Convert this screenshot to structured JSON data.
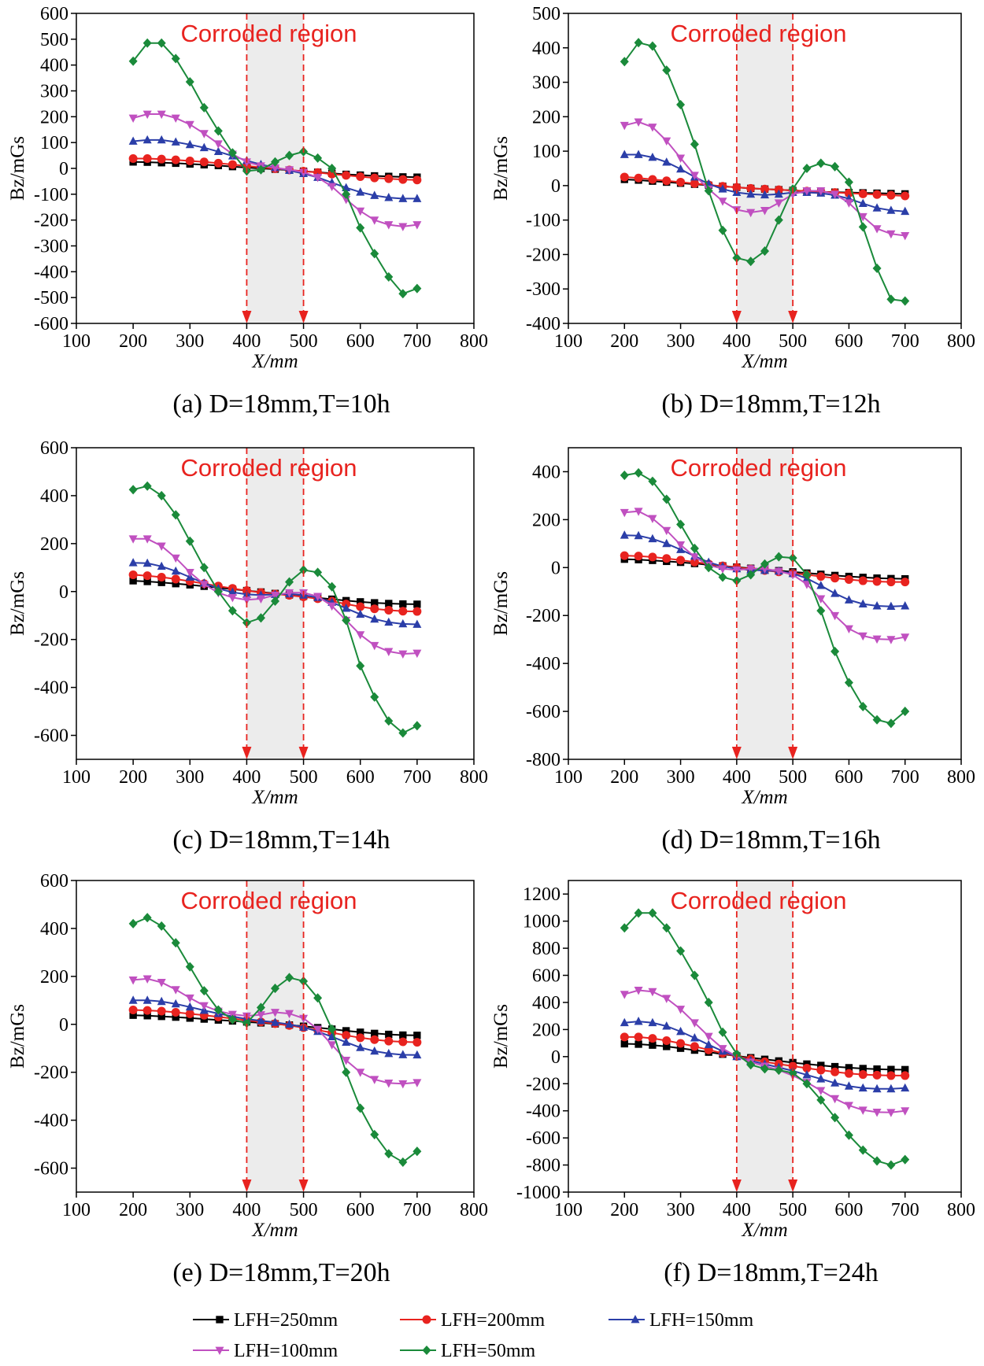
{
  "legend": [
    {
      "name": "LFH=250mm",
      "color": "#000000",
      "marker": "square"
    },
    {
      "name": "LFH=200mm",
      "color": "#e8231f",
      "marker": "circle"
    },
    {
      "name": "LFH=150mm",
      "color": "#2b3ea8",
      "marker": "triangle-up"
    },
    {
      "name": "LFH=100mm",
      "color": "#c050c0",
      "marker": "triangle-down"
    },
    {
      "name": "LFH=50mm",
      "color": "#1a8a3a",
      "marker": "diamond"
    }
  ],
  "chart_data": [
    {
      "type": "line",
      "title": "(a) D=18mm,T=10h",
      "xlabel": "X/mm",
      "ylabel": "Bz/mGs",
      "annotation": "Corroded region",
      "highlight_x": [
        400,
        500
      ],
      "xlim": [
        100,
        800
      ],
      "xticks": [
        100,
        200,
        300,
        400,
        500,
        600,
        700,
        800
      ],
      "ylim": [
        -600,
        600
      ],
      "yticks": [
        -600,
        -500,
        -400,
        -300,
        -200,
        -100,
        0,
        100,
        200,
        300,
        400,
        500,
        600
      ],
      "x": [
        200,
        225,
        250,
        275,
        300,
        325,
        350,
        375,
        400,
        425,
        450,
        475,
        500,
        525,
        550,
        575,
        600,
        625,
        650,
        675,
        700
      ],
      "series": [
        {
          "values": [
            25,
            24,
            22,
            20,
            17,
            14,
            11,
            7,
            3,
            0,
            -3,
            -7,
            -11,
            -15,
            -19,
            -23,
            -26,
            -29,
            -31,
            -33,
            -34
          ]
        },
        {
          "values": [
            38,
            38,
            36,
            33,
            29,
            25,
            20,
            15,
            9,
            4,
            -1,
            -6,
            -11,
            -16,
            -22,
            -27,
            -32,
            -37,
            -40,
            -43,
            -45
          ]
        },
        {
          "values": [
            105,
            110,
            110,
            102,
            92,
            80,
            65,
            48,
            30,
            15,
            3,
            -8,
            -20,
            -35,
            -55,
            -75,
            -92,
            -105,
            -113,
            -117,
            -117
          ]
        },
        {
          "values": [
            195,
            210,
            210,
            195,
            170,
            135,
            95,
            55,
            25,
            10,
            2,
            -5,
            -15,
            -35,
            -70,
            -120,
            -165,
            -200,
            -218,
            -225,
            -218
          ]
        },
        {
          "values": [
            415,
            485,
            485,
            425,
            335,
            235,
            145,
            60,
            -10,
            -5,
            25,
            50,
            65,
            40,
            0,
            -100,
            -230,
            -330,
            -420,
            -485,
            -465
          ]
        }
      ]
    },
    {
      "type": "line",
      "title": "(b) D=18mm,T=12h",
      "xlabel": "X/mm",
      "ylabel": "Bz/mGs",
      "annotation": "Corroded region",
      "highlight_x": [
        400,
        500
      ],
      "xlim": [
        100,
        800
      ],
      "xticks": [
        100,
        200,
        300,
        400,
        500,
        600,
        700,
        800
      ],
      "ylim": [
        -400,
        500
      ],
      "yticks": [
        -400,
        -300,
        -200,
        -100,
        0,
        100,
        200,
        300,
        400,
        500
      ],
      "x": [
        200,
        225,
        250,
        275,
        300,
        325,
        350,
        375,
        400,
        425,
        450,
        475,
        500,
        525,
        550,
        575,
        600,
        625,
        650,
        675,
        700
      ],
      "series": [
        {
          "values": [
            18,
            16,
            13,
            10,
            7,
            4,
            1,
            -2,
            -5,
            -8,
            -10,
            -12,
            -14,
            -16,
            -18,
            -19,
            -20,
            -21,
            -22,
            -23,
            -24
          ]
        },
        {
          "values": [
            25,
            22,
            18,
            14,
            10,
            6,
            2,
            -2,
            -5,
            -8,
            -10,
            -12,
            -14,
            -16,
            -18,
            -20,
            -22,
            -24,
            -26,
            -28,
            -30
          ]
        },
        {
          "values": [
            90,
            90,
            82,
            68,
            48,
            25,
            5,
            -10,
            -20,
            -25,
            -27,
            -25,
            -20,
            -20,
            -22,
            -28,
            -38,
            -52,
            -65,
            -72,
            -75
          ]
        },
        {
          "values": [
            175,
            185,
            170,
            130,
            80,
            30,
            -10,
            -45,
            -70,
            -78,
            -72,
            -50,
            -25,
            -15,
            -15,
            -25,
            -50,
            -90,
            -125,
            -140,
            -145
          ]
        },
        {
          "values": [
            360,
            415,
            405,
            335,
            235,
            120,
            -15,
            -130,
            -210,
            -220,
            -190,
            -100,
            -10,
            50,
            65,
            55,
            10,
            -120,
            -240,
            -330,
            -335
          ]
        }
      ]
    },
    {
      "type": "line",
      "title": "(c) D=18mm,T=14h",
      "xlabel": "X/mm",
      "ylabel": "Bz/mGs",
      "annotation": "Corroded region",
      "highlight_x": [
        400,
        500
      ],
      "xlim": [
        100,
        800
      ],
      "xticks": [
        100,
        200,
        300,
        400,
        500,
        600,
        700,
        800
      ],
      "ylim": [
        -700,
        600
      ],
      "yticks": [
        -600,
        -400,
        -200,
        0,
        200,
        400,
        600
      ],
      "x": [
        200,
        225,
        250,
        275,
        300,
        325,
        350,
        375,
        400,
        425,
        450,
        475,
        500,
        525,
        550,
        575,
        600,
        625,
        650,
        675,
        700
      ],
      "series": [
        {
          "values": [
            45,
            42,
            38,
            33,
            28,
            22,
            16,
            10,
            4,
            -2,
            -8,
            -14,
            -20,
            -26,
            -32,
            -38,
            -43,
            -47,
            -50,
            -52,
            -53
          ]
        },
        {
          "values": [
            70,
            66,
            60,
            52,
            43,
            33,
            23,
            13,
            4,
            -4,
            -10,
            -16,
            -22,
            -30,
            -40,
            -52,
            -63,
            -72,
            -78,
            -82,
            -83
          ]
        },
        {
          "values": [
            120,
            118,
            105,
            85,
            60,
            35,
            12,
            -3,
            -12,
            -15,
            -12,
            -10,
            -15,
            -25,
            -45,
            -70,
            -95,
            -115,
            -128,
            -135,
            -137
          ]
        },
        {
          "values": [
            220,
            220,
            190,
            140,
            80,
            30,
            -5,
            -25,
            -35,
            -30,
            -15,
            -5,
            -5,
            -20,
            -60,
            -120,
            -180,
            -225,
            -250,
            -260,
            -257
          ]
        },
        {
          "values": [
            425,
            440,
            400,
            320,
            210,
            100,
            0,
            -80,
            -130,
            -110,
            -40,
            40,
            90,
            80,
            20,
            -120,
            -310,
            -440,
            -540,
            -590,
            -560
          ]
        }
      ]
    },
    {
      "type": "line",
      "title": "(d) D=18mm,T=16h",
      "xlabel": "X/mm",
      "ylabel": "Bz/mGs",
      "annotation": "Corroded region",
      "highlight_x": [
        400,
        500
      ],
      "xlim": [
        100,
        800
      ],
      "xticks": [
        100,
        200,
        300,
        400,
        500,
        600,
        700,
        800
      ],
      "ylim": [
        -800,
        500
      ],
      "yticks": [
        -800,
        -600,
        -400,
        -200,
        0,
        200,
        400
      ],
      "x": [
        200,
        225,
        250,
        275,
        300,
        325,
        350,
        375,
        400,
        425,
        450,
        475,
        500,
        525,
        550,
        575,
        600,
        625,
        650,
        675,
        700
      ],
      "series": [
        {
          "values": [
            35,
            33,
            30,
            26,
            22,
            17,
            12,
            7,
            2,
            -3,
            -8,
            -13,
            -18,
            -23,
            -28,
            -33,
            -37,
            -41,
            -44,
            -46,
            -47
          ]
        },
        {
          "values": [
            50,
            48,
            44,
            38,
            31,
            23,
            15,
            7,
            0,
            -6,
            -12,
            -18,
            -24,
            -30,
            -37,
            -44,
            -50,
            -55,
            -58,
            -60,
            -60
          ]
        },
        {
          "values": [
            135,
            133,
            120,
            100,
            75,
            48,
            22,
            5,
            -5,
            -10,
            -12,
            -15,
            -25,
            -45,
            -75,
            -108,
            -135,
            -152,
            -160,
            -162,
            -160
          ]
        },
        {
          "values": [
            230,
            235,
            205,
            155,
            95,
            45,
            10,
            -5,
            -10,
            -5,
            -5,
            -15,
            -30,
            -70,
            -130,
            -200,
            -255,
            -285,
            -298,
            -300,
            -290
          ]
        },
        {
          "values": [
            385,
            395,
            360,
            285,
            180,
            80,
            0,
            -40,
            -55,
            -30,
            15,
            45,
            40,
            -30,
            -180,
            -350,
            -480,
            -580,
            -635,
            -650,
            -600
          ]
        }
      ]
    },
    {
      "type": "line",
      "title": "(e) D=18mm,T=20h",
      "xlabel": "X/mm",
      "ylabel": "Bz/mGs",
      "annotation": "Corroded region",
      "highlight_x": [
        400,
        500
      ],
      "xlim": [
        100,
        800
      ],
      "xticks": [
        100,
        200,
        300,
        400,
        500,
        600,
        700,
        800
      ],
      "ylim": [
        -700,
        600
      ],
      "yticks": [
        -600,
        -400,
        -200,
        0,
        200,
        400,
        600
      ],
      "x": [
        200,
        225,
        250,
        275,
        300,
        325,
        350,
        375,
        400,
        425,
        450,
        475,
        500,
        525,
        550,
        575,
        600,
        625,
        650,
        675,
        700
      ],
      "series": [
        {
          "values": [
            38,
            36,
            33,
            30,
            26,
            22,
            18,
            14,
            10,
            6,
            2,
            -3,
            -8,
            -14,
            -20,
            -27,
            -33,
            -38,
            -42,
            -45,
            -46
          ]
        },
        {
          "values": [
            60,
            58,
            55,
            50,
            44,
            38,
            31,
            24,
            17,
            10,
            3,
            -5,
            -14,
            -24,
            -35,
            -46,
            -56,
            -64,
            -70,
            -73,
            -75
          ]
        },
        {
          "values": [
            100,
            100,
            95,
            85,
            72,
            58,
            45,
            33,
            22,
            15,
            8,
            0,
            -12,
            -30,
            -52,
            -75,
            -97,
            -112,
            -122,
            -127,
            -128
          ]
        },
        {
          "values": [
            185,
            190,
            175,
            145,
            110,
            78,
            55,
            42,
            35,
            40,
            50,
            45,
            25,
            -20,
            -85,
            -150,
            -200,
            -230,
            -245,
            -248,
            -243
          ]
        },
        {
          "values": [
            420,
            445,
            410,
            340,
            240,
            140,
            60,
            20,
            5,
            70,
            150,
            195,
            180,
            110,
            -20,
            -200,
            -350,
            -460,
            -540,
            -575,
            -530
          ]
        }
      ]
    },
    {
      "type": "line",
      "title": "(f) D=18mm,T=24h",
      "xlabel": "X/mm",
      "ylabel": "Bz/mGs",
      "annotation": "Corroded region",
      "highlight_x": [
        400,
        500
      ],
      "xlim": [
        100,
        800
      ],
      "xticks": [
        100,
        200,
        300,
        400,
        500,
        600,
        700,
        800
      ],
      "ylim": [
        -1000,
        1300
      ],
      "yticks": [
        -1000,
        -800,
        -600,
        -400,
        -200,
        0,
        200,
        400,
        600,
        800,
        1000,
        1200
      ],
      "x": [
        200,
        225,
        250,
        275,
        300,
        325,
        350,
        375,
        400,
        425,
        450,
        475,
        500,
        525,
        550,
        575,
        600,
        625,
        650,
        675,
        700
      ],
      "series": [
        {
          "values": [
            95,
            92,
            85,
            75,
            62,
            48,
            33,
            18,
            5,
            -8,
            -20,
            -32,
            -44,
            -55,
            -65,
            -74,
            -82,
            -88,
            -92,
            -95,
            -96
          ]
        },
        {
          "values": [
            145,
            145,
            135,
            118,
            98,
            75,
            50,
            25,
            3,
            -18,
            -38,
            -55,
            -70,
            -85,
            -100,
            -113,
            -124,
            -132,
            -137,
            -140,
            -140
          ]
        },
        {
          "values": [
            250,
            260,
            250,
            225,
            185,
            138,
            88,
            40,
            0,
            -30,
            -55,
            -80,
            -105,
            -135,
            -165,
            -195,
            -218,
            -232,
            -238,
            -238,
            -232
          ]
        },
        {
          "values": [
            460,
            490,
            480,
            430,
            350,
            250,
            150,
            60,
            0,
            -40,
            -70,
            -100,
            -140,
            -190,
            -250,
            -310,
            -360,
            -395,
            -410,
            -412,
            -400
          ]
        },
        {
          "values": [
            950,
            1060,
            1060,
            950,
            780,
            600,
            400,
            180,
            20,
            -60,
            -90,
            -100,
            -120,
            -200,
            -320,
            -450,
            -580,
            -690,
            -770,
            -800,
            -760
          ]
        }
      ]
    }
  ]
}
